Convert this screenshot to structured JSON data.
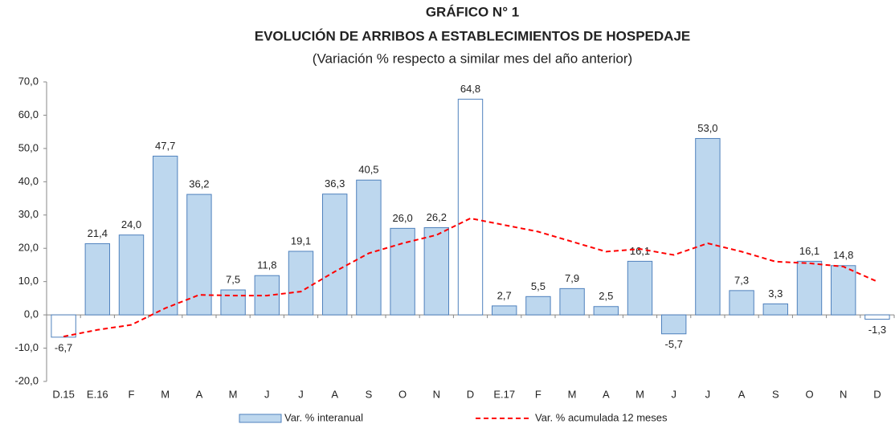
{
  "chart_data": {
    "type": "bar",
    "title": "GRÁFICO N° 1",
    "subtitle": "EVOLUCIÓN DE ARRIBOS A ESTABLECIMIENTOS DE HOSPEDAJE",
    "note": "(Variación % respecto a similar mes del año anterior)",
    "categories": [
      "D.15",
      "E.16",
      "F",
      "M",
      "A",
      "M",
      "J",
      "J",
      "A",
      "S",
      "O",
      "N",
      "D",
      "E.17",
      "F",
      "M",
      "A",
      "M",
      "J",
      "J",
      "A",
      "S",
      "O",
      "N",
      "D"
    ],
    "series": [
      {
        "name": "Var. % interanual",
        "type": "bar",
        "color": "#bdd7ee",
        "border": "#4f81bd",
        "values": [
          -6.7,
          21.4,
          24.0,
          47.7,
          36.2,
          7.5,
          11.8,
          19.1,
          36.3,
          40.5,
          26.0,
          26.2,
          64.8,
          2.7,
          5.5,
          7.9,
          2.5,
          16.1,
          -5.7,
          53.0,
          7.3,
          3.3,
          16.1,
          14.8,
          -1.3
        ],
        "value_labels": [
          "-6,7",
          "21,4",
          "24,0",
          "47,7",
          "36,2",
          "7,5",
          "11,8",
          "19,1",
          "36,3",
          "40,5",
          "26,0",
          "26,2",
          "64,8",
          "2,7",
          "5,5",
          "7,9",
          "2,5",
          "16,1",
          "-5,7",
          "53,0",
          "7,3",
          "3,3",
          "16,1",
          "14,8",
          "-1,3"
        ],
        "bar_colors": [
          "#ffffff",
          "#bdd7ee",
          "#bdd7ee",
          "#bdd7ee",
          "#bdd7ee",
          "#bdd7ee",
          "#bdd7ee",
          "#bdd7ee",
          "#bdd7ee",
          "#bdd7ee",
          "#bdd7ee",
          "#bdd7ee",
          "#ffffff",
          "#bdd7ee",
          "#bdd7ee",
          "#bdd7ee",
          "#bdd7ee",
          "#bdd7ee",
          "#bdd7ee",
          "#bdd7ee",
          "#bdd7ee",
          "#bdd7ee",
          "#bdd7ee",
          "#bdd7ee",
          "#ffffff"
        ]
      },
      {
        "name": "Var. % acumulada 12 meses",
        "type": "line",
        "color": "#ff0000",
        "dashed": true,
        "values": [
          -6.5,
          -4.5,
          -3,
          2,
          6,
          5.8,
          5.8,
          7,
          13,
          18.5,
          21.5,
          24,
          29,
          27,
          25,
          22,
          19,
          19.8,
          18,
          21.5,
          19,
          16,
          15.5,
          14.5,
          10
        ]
      }
    ],
    "ylim": [
      -20,
      70
    ],
    "yticks": [
      {
        "value": -20,
        "label": "-20,0"
      },
      {
        "value": -10,
        "label": "-10,0"
      },
      {
        "value": 0,
        "label": "0,0"
      },
      {
        "value": 10,
        "label": "10,0"
      },
      {
        "value": 20,
        "label": "20,0"
      },
      {
        "value": 30,
        "label": "30,0"
      },
      {
        "value": 40,
        "label": "40,0"
      },
      {
        "value": 50,
        "label": "50,0"
      },
      {
        "value": 60,
        "label": "60,0"
      },
      {
        "value": 70,
        "label": "70,0"
      }
    ]
  }
}
